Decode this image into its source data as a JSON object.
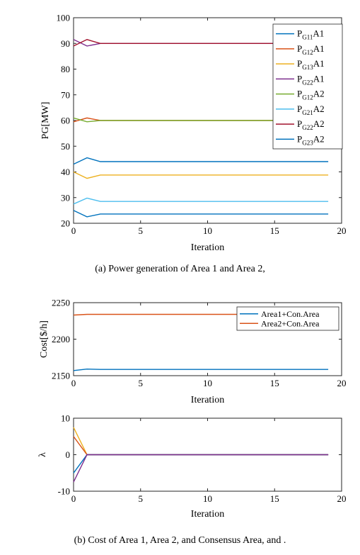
{
  "captions": {
    "a": "(a) Power generation of Area 1 and Area 2,",
    "b": "(b) Cost of Area 1, Area 2, and Consensus Area, and ."
  },
  "chart_data": [
    {
      "type": "line",
      "title": "",
      "xlabel": "Iteration",
      "ylabel": "PG[MW]",
      "xlim": [
        0,
        20
      ],
      "ylim": [
        20,
        100
      ],
      "xticks": [
        0,
        5,
        10,
        15,
        20
      ],
      "yticks": [
        20,
        30,
        40,
        50,
        60,
        70,
        80,
        90,
        100
      ],
      "grid": false,
      "legend_position": "top-right",
      "series": [
        {
          "name": "PG11A1",
          "sub": "G11",
          "suffix": "A1",
          "color": "#0072BD",
          "x": [
            0,
            1,
            2,
            19
          ],
          "y": [
            43,
            45.5,
            44,
            44
          ]
        },
        {
          "name": "PG12A1",
          "sub": "G12",
          "suffix": "A1",
          "color": "#D95319",
          "x": [
            0,
            1,
            2,
            19
          ],
          "y": [
            59.5,
            61,
            60,
            60
          ]
        },
        {
          "name": "PG13A1",
          "sub": "G13",
          "suffix": "A1",
          "color": "#EDB120",
          "x": [
            0,
            1,
            2,
            19
          ],
          "y": [
            40,
            37.5,
            38.8,
            38.8
          ]
        },
        {
          "name": "PG22A1",
          "sub": "G22",
          "suffix": "A1",
          "color": "#7E2F8E",
          "x": [
            0,
            1,
            2,
            19
          ],
          "y": [
            91.5,
            89,
            90,
            90
          ]
        },
        {
          "name": "PG12A2",
          "sub": "G12",
          "suffix": "A2",
          "color": "#77AC30",
          "x": [
            0,
            1,
            2,
            19
          ],
          "y": [
            61,
            59.5,
            60,
            60
          ]
        },
        {
          "name": "PG21A2",
          "sub": "G21",
          "suffix": "A2",
          "color": "#4DBEEE",
          "x": [
            0,
            1,
            2,
            19
          ],
          "y": [
            27.5,
            29.8,
            28.5,
            28.5
          ]
        },
        {
          "name": "PG22A2",
          "sub": "G22",
          "suffix": "A2",
          "color": "#A2142F",
          "x": [
            0,
            1,
            2,
            19
          ],
          "y": [
            89,
            91.5,
            90,
            90
          ]
        },
        {
          "name": "PG23A2",
          "sub": "G23",
          "suffix": "A2",
          "color": "#0072BD",
          "x": [
            0,
            1,
            2,
            19
          ],
          "y": [
            25,
            22.5,
            23.6,
            23.6
          ]
        }
      ]
    },
    {
      "type": "line",
      "title": "",
      "xlabel": "Iteration",
      "ylabel": "Cost[$/h]",
      "xlim": [
        0,
        20
      ],
      "ylim": [
        2150,
        2250
      ],
      "xticks": [
        0,
        5,
        10,
        15,
        20
      ],
      "yticks": [
        2150,
        2200,
        2250
      ],
      "grid": false,
      "legend_position": "top-right",
      "series": [
        {
          "name": "Area1+Con.Area",
          "color": "#0072BD",
          "x": [
            0,
            1,
            2,
            19
          ],
          "y": [
            2157,
            2159,
            2158.5,
            2158.5
          ]
        },
        {
          "name": "Area2+Con.Area",
          "color": "#D95319",
          "x": [
            0,
            1,
            2,
            19
          ],
          "y": [
            2233,
            2234,
            2234,
            2234
          ]
        }
      ]
    },
    {
      "type": "line",
      "title": "",
      "xlabel": "Iteration",
      "ylabel": "λ",
      "xlim": [
        0,
        20
      ],
      "ylim": [
        -10,
        10
      ],
      "xticks": [
        0,
        5,
        10,
        15,
        20
      ],
      "yticks": [
        -10,
        0,
        10
      ],
      "grid": false,
      "series": [
        {
          "color": "#EDB120",
          "x": [
            0,
            1,
            19
          ],
          "y": [
            7.5,
            0,
            0
          ]
        },
        {
          "color": "#D95319",
          "x": [
            0,
            1,
            19
          ],
          "y": [
            5,
            0,
            0
          ]
        },
        {
          "color": "#0072BD",
          "x": [
            0,
            1,
            19
          ],
          "y": [
            -5,
            0,
            0
          ]
        },
        {
          "color": "#7E2F8E",
          "x": [
            0,
            1,
            19
          ],
          "y": [
            -7.5,
            0,
            0
          ]
        }
      ]
    }
  ]
}
